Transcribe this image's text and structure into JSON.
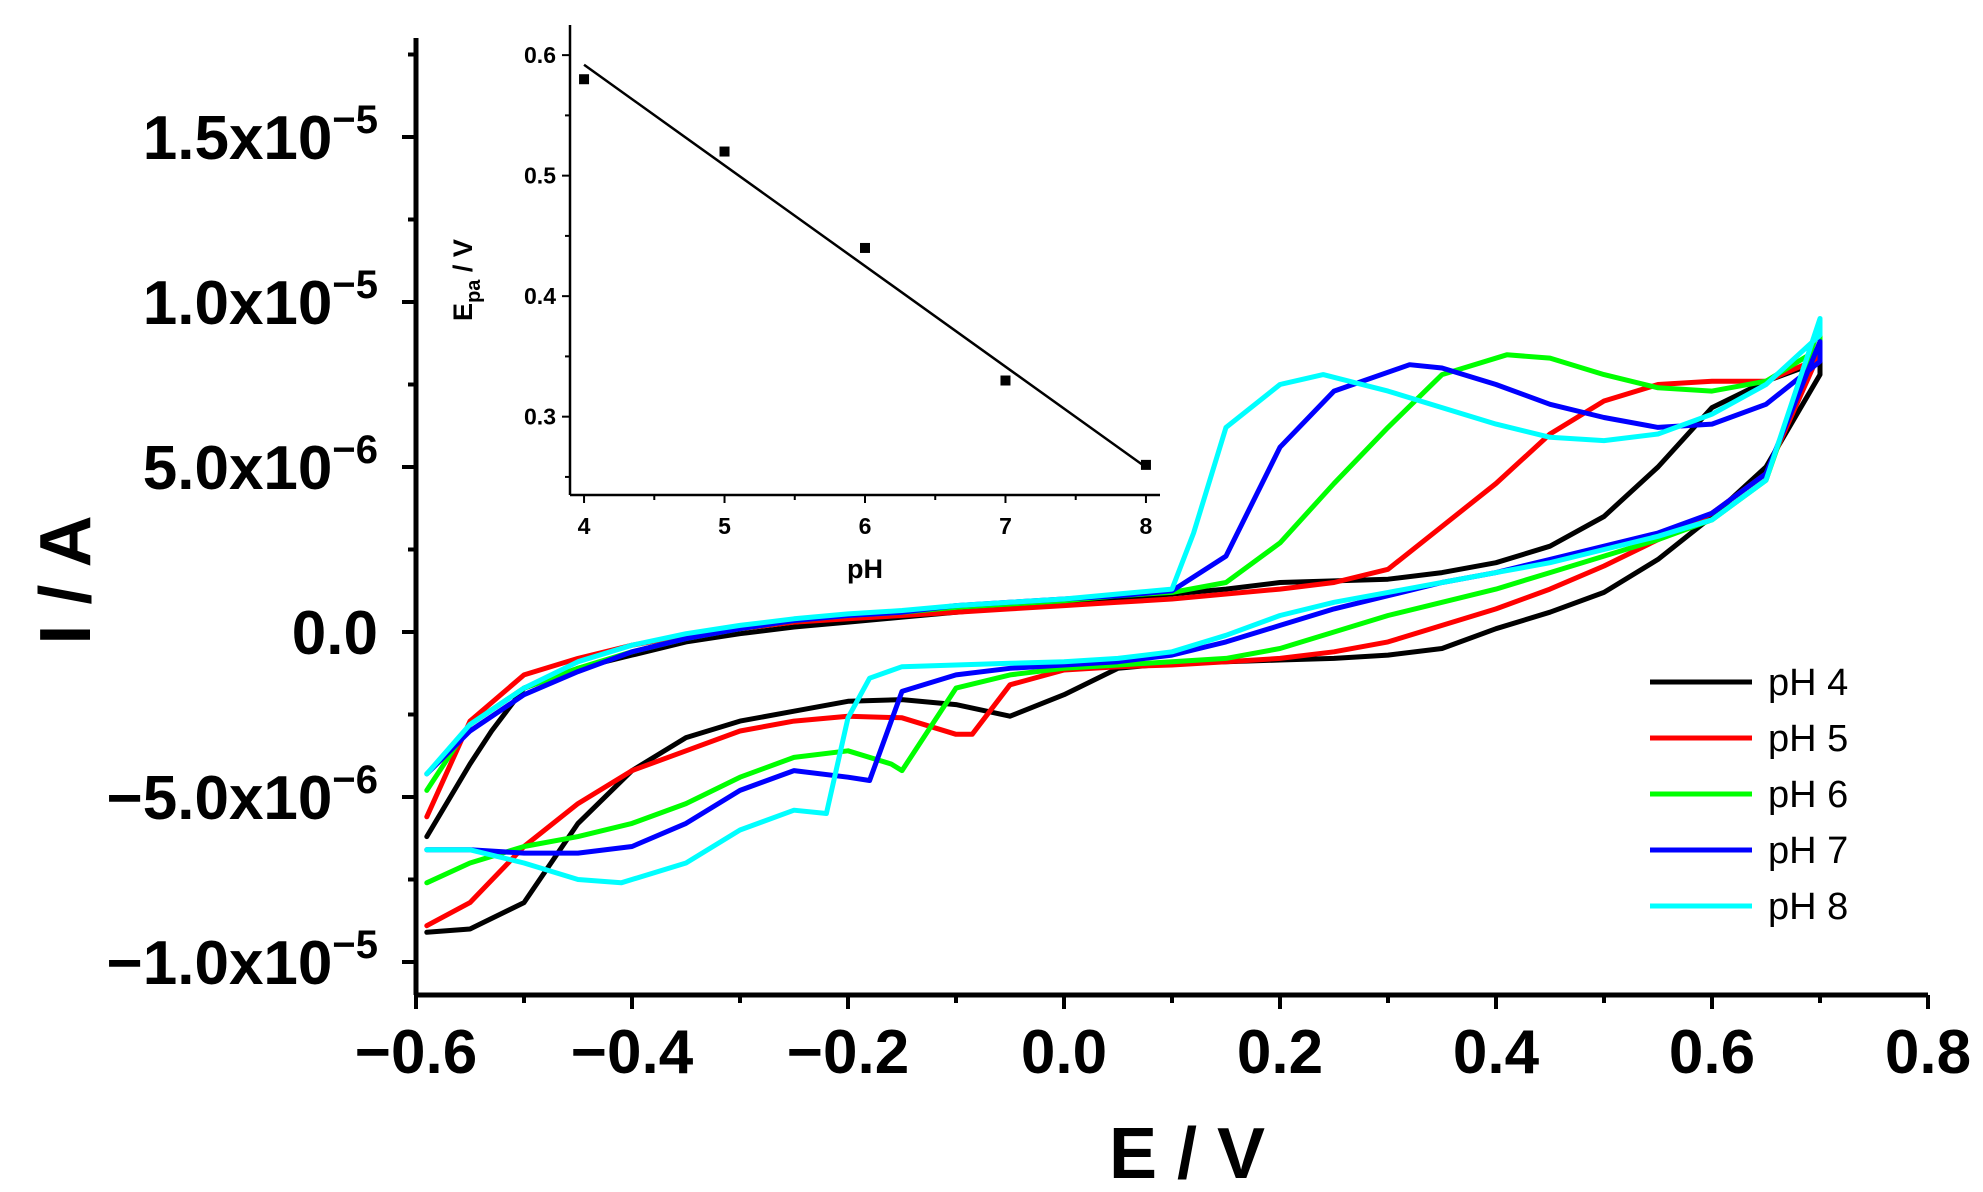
{
  "chart_data": [
    {
      "type": "line",
      "title": "",
      "xlabel": "E / V",
      "ylabel": "I / A",
      "xlim": [
        -0.6,
        0.8
      ],
      "ylim": [
        -1.1e-05,
        1.8e-05
      ],
      "x_ticks": [
        {
          "value": -0.6,
          "label": "−0.6"
        },
        {
          "value": -0.4,
          "label": "−0.4"
        },
        {
          "value": -0.2,
          "label": "−0.2"
        },
        {
          "value": 0.0,
          "label": "0.0"
        },
        {
          "value": 0.2,
          "label": "0.2"
        },
        {
          "value": 0.4,
          "label": "0.4"
        },
        {
          "value": 0.6,
          "label": "0.6"
        },
        {
          "value": 0.8,
          "label": "0.8"
        }
      ],
      "y_ticks": [
        {
          "value": -1e-05,
          "label": "−1.0x10",
          "exp": "−5"
        },
        {
          "value": -5e-06,
          "label": "−5.0x10",
          "exp": "−6"
        },
        {
          "value": 0,
          "label": "0.0",
          "exp": ""
        },
        {
          "value": 5e-06,
          "label": "5.0x10",
          "exp": "−6"
        },
        {
          "value": 1e-05,
          "label": "1.0x10",
          "exp": "−5"
        },
        {
          "value": 1.5e-05,
          "label": "1.5x10",
          "exp": "−5"
        }
      ],
      "legend_position": "bottom-right",
      "series": [
        {
          "name": "pH 4",
          "color": "#000000",
          "x": [
            -0.59,
            -0.55,
            -0.5,
            -0.45,
            -0.4,
            -0.35,
            -0.3,
            -0.25,
            -0.2,
            -0.15,
            -0.1,
            -0.05,
            0.0,
            0.05,
            0.1,
            0.15,
            0.2,
            0.25,
            0.3,
            0.35,
            0.4,
            0.45,
            0.5,
            0.55,
            0.6,
            0.65,
            0.7,
            0.7,
            0.65,
            0.6,
            0.55,
            0.5,
            0.45,
            0.4,
            0.35,
            0.3,
            0.25,
            0.2,
            0.15,
            0.1,
            0.05,
            0.01,
            -0.03,
            -0.05,
            -0.1,
            -0.15,
            -0.2,
            -0.25,
            -0.3,
            -0.35,
            -0.4,
            -0.45,
            -0.5,
            -0.53,
            -0.55,
            -0.59
          ],
          "y": [
            -9.1e-06,
            -9e-06,
            -8.2e-06,
            -5.8e-06,
            -4.2e-06,
            -3.2e-06,
            -2.7e-06,
            -2.4e-06,
            -2.1e-06,
            -2.05e-06,
            -2.2e-06,
            -2.55e-06,
            -1.9e-06,
            -1.1e-06,
            -9.5e-07,
            -9e-07,
            -8.5e-07,
            -8e-07,
            -7e-07,
            -5e-07,
            1e-07,
            6e-07,
            1.2e-06,
            2.2e-06,
            3.5e-06,
            5e-06,
            7.8e-06,
            8.2e-06,
            7.6e-06,
            6.8e-06,
            5e-06,
            3.5e-06,
            2.6e-06,
            2.1e-06,
            1.8e-06,
            1.6e-06,
            1.55e-06,
            1.5e-06,
            1.3e-06,
            1.15e-06,
            1e-06,
            9e-07,
            8e-07,
            7.5e-07,
            6e-07,
            4.5e-07,
            3e-07,
            1.5e-07,
            -5e-08,
            -3e-07,
            -7e-07,
            -1.1e-06,
            -1.7e-06,
            -3e-06,
            -4e-06,
            -6.2e-06
          ]
        },
        {
          "name": "pH 5",
          "color": "#ff0000",
          "x": [
            -0.59,
            -0.55,
            -0.5,
            -0.45,
            -0.4,
            -0.35,
            -0.3,
            -0.25,
            -0.2,
            -0.15,
            -0.1,
            -0.085,
            -0.05,
            0.0,
            0.05,
            0.1,
            0.15,
            0.2,
            0.25,
            0.3,
            0.35,
            0.4,
            0.45,
            0.5,
            0.55,
            0.6,
            0.65,
            0.7,
            0.7,
            0.65,
            0.6,
            0.55,
            0.5,
            0.45,
            0.4,
            0.35,
            0.3,
            0.25,
            0.2,
            0.15,
            0.1,
            0.05,
            0.0,
            -0.05,
            -0.1,
            -0.15,
            -0.2,
            -0.25,
            -0.3,
            -0.35,
            -0.4,
            -0.45,
            -0.5,
            -0.55,
            -0.59
          ],
          "y": [
            -8.9e-06,
            -8.2e-06,
            -6.5e-06,
            -5.2e-06,
            -4.2e-06,
            -3.6e-06,
            -3e-06,
            -2.7e-06,
            -2.55e-06,
            -2.6e-06,
            -3.1e-06,
            -3.1e-06,
            -1.6e-06,
            -1.15e-06,
            -1.05e-06,
            -1e-06,
            -9e-07,
            -8e-07,
            -6e-07,
            -3e-07,
            2e-07,
            7e-07,
            1.3e-06,
            2e-06,
            2.8e-06,
            3.6e-06,
            4.8e-06,
            8.5e-06,
            8.3e-06,
            7.6e-06,
            7.6e-06,
            7.5e-06,
            7e-06,
            6e-06,
            4.5e-06,
            3.2e-06,
            1.9e-06,
            1.5e-06,
            1.3e-06,
            1.15e-06,
            1e-06,
            9e-07,
            8e-07,
            7e-07,
            6e-07,
            5e-07,
            4e-07,
            3e-07,
            1e-07,
            -1e-07,
            -4e-07,
            -8e-07,
            -1.3e-06,
            -2.7e-06,
            -5.6e-06
          ]
        },
        {
          "name": "pH 6",
          "color": "#00ff00",
          "x": [
            -0.59,
            -0.55,
            -0.5,
            -0.45,
            -0.4,
            -0.35,
            -0.3,
            -0.25,
            -0.2,
            -0.16,
            -0.15,
            -0.1,
            -0.05,
            0.0,
            0.05,
            0.1,
            0.15,
            0.2,
            0.25,
            0.3,
            0.35,
            0.4,
            0.45,
            0.5,
            0.55,
            0.6,
            0.65,
            0.7,
            0.7,
            0.65,
            0.6,
            0.55,
            0.5,
            0.45,
            0.41,
            0.35,
            0.3,
            0.25,
            0.2,
            0.15,
            0.1,
            0.05,
            0.0,
            -0.05,
            -0.1,
            -0.15,
            -0.2,
            -0.25,
            -0.3,
            -0.35,
            -0.4,
            -0.45,
            -0.5,
            -0.55,
            -0.59
          ],
          "y": [
            -7.6e-06,
            -7e-06,
            -6.5e-06,
            -6.2e-06,
            -5.8e-06,
            -5.2e-06,
            -4.4e-06,
            -3.8e-06,
            -3.6e-06,
            -4e-06,
            -4.2e-06,
            -1.7e-06,
            -1.3e-06,
            -1.1e-06,
            -1e-06,
            -9e-07,
            -8e-07,
            -5e-07,
            0.0,
            5e-07,
            9e-07,
            1.3e-06,
            1.8e-06,
            2.3e-06,
            2.8e-06,
            3.4e-06,
            4.6e-06,
            9.3e-06,
            8.6e-06,
            7.6e-06,
            7.3e-06,
            7.4e-06,
            7.8e-06,
            8.3e-06,
            8.4e-06,
            7.8e-06,
            6.2e-06,
            4.5e-06,
            2.7e-06,
            1.5e-06,
            1.2e-06,
            1.1e-06,
            9.5e-07,
            8.5e-07,
            7.5e-07,
            6e-07,
            5e-07,
            3.5e-07,
            1e-07,
            -2e-07,
            -6e-07,
            -1.1e-06,
            -1.7e-06,
            -2.8e-06,
            -4.8e-06
          ]
        },
        {
          "name": "pH 7",
          "color": "#0000ff",
          "x": [
            -0.59,
            -0.55,
            -0.5,
            -0.45,
            -0.4,
            -0.35,
            -0.3,
            -0.25,
            -0.2,
            -0.18,
            -0.15,
            -0.1,
            -0.05,
            0.0,
            0.05,
            0.1,
            0.15,
            0.2,
            0.25,
            0.3,
            0.35,
            0.4,
            0.45,
            0.5,
            0.55,
            0.6,
            0.65,
            0.7,
            0.7,
            0.65,
            0.6,
            0.55,
            0.5,
            0.45,
            0.4,
            0.35,
            0.32,
            0.25,
            0.2,
            0.15,
            0.1,
            0.05,
            0.0,
            -0.05,
            -0.1,
            -0.15,
            -0.2,
            -0.25,
            -0.3,
            -0.35,
            -0.4,
            -0.45,
            -0.5,
            -0.55,
            -0.59
          ],
          "y": [
            -6.6e-06,
            -6.6e-06,
            -6.7e-06,
            -6.7e-06,
            -6.5e-06,
            -5.8e-06,
            -4.8e-06,
            -4.2e-06,
            -4.4e-06,
            -4.5e-06,
            -1.8e-06,
            -1.3e-06,
            -1.1e-06,
            -1e-06,
            -9e-07,
            -7e-07,
            -3e-07,
            2e-07,
            7e-07,
            1.1e-06,
            1.5e-06,
            1.8e-06,
            2.2e-06,
            2.6e-06,
            3e-06,
            3.6e-06,
            4.8e-06,
            8.8e-06,
            8.2e-06,
            6.9e-06,
            6.3e-06,
            6.2e-06,
            6.5e-06,
            6.9e-06,
            7.5e-06,
            8e-06,
            8.1e-06,
            7.3e-06,
            5.6e-06,
            2.3e-06,
            1.25e-06,
            1.1e-06,
            1e-06,
            9e-07,
            8e-07,
            6e-07,
            5e-07,
            3.5e-07,
            1e-07,
            -2e-07,
            -6e-07,
            -1.2e-06,
            -1.9e-06,
            -3e-06,
            -4.3e-06
          ]
        },
        {
          "name": "pH 8",
          "color": "#00ffff",
          "x": [
            -0.59,
            -0.55,
            -0.5,
            -0.45,
            -0.41,
            -0.35,
            -0.3,
            -0.25,
            -0.22,
            -0.2,
            -0.18,
            -0.15,
            -0.1,
            -0.05,
            0.0,
            0.05,
            0.1,
            0.15,
            0.2,
            0.25,
            0.3,
            0.35,
            0.4,
            0.45,
            0.5,
            0.55,
            0.6,
            0.65,
            0.7,
            0.7,
            0.65,
            0.6,
            0.55,
            0.5,
            0.45,
            0.4,
            0.35,
            0.3,
            0.24,
            0.2,
            0.15,
            0.12,
            0.1,
            0.05,
            0.0,
            -0.05,
            -0.1,
            -0.15,
            -0.2,
            -0.25,
            -0.3,
            -0.35,
            -0.4,
            -0.45,
            -0.5,
            -0.55,
            -0.59
          ],
          "y": [
            -6.6e-06,
            -6.6e-06,
            -7e-06,
            -7.5e-06,
            -7.6e-06,
            -7e-06,
            -6e-06,
            -5.4e-06,
            -5.5e-06,
            -2.6e-06,
            -1.4e-06,
            -1.05e-06,
            -1e-06,
            -9.5e-07,
            -9e-07,
            -8e-07,
            -6e-07,
            -1e-07,
            5e-07,
            9e-07,
            1.2e-06,
            1.5e-06,
            1.8e-06,
            2.1e-06,
            2.5e-06,
            2.9e-06,
            3.4e-06,
            4.6e-06,
            9.5e-06,
            9e-06,
            7.5e-06,
            6.6e-06,
            6e-06,
            5.8e-06,
            5.9e-06,
            6.3e-06,
            6.8e-06,
            7.3e-06,
            7.8e-06,
            7.5e-06,
            6.2e-06,
            3e-06,
            1.3e-06,
            1.15e-06,
            1e-06,
            9e-07,
            8e-07,
            6.5e-07,
            5.5e-07,
            4e-07,
            2e-07,
            -5e-08,
            -4e-07,
            -9e-07,
            -1.7e-06,
            -2.8e-06,
            -4.3e-06
          ]
        }
      ]
    },
    {
      "type": "scatter",
      "title": "",
      "xlabel": "pH",
      "ylabel": "E",
      "ylabel_sub": "pa",
      "ylabel_suffix": " / V",
      "xlim": [
        3.9,
        8.1
      ],
      "ylim": [
        0.235,
        0.625
      ],
      "x_ticks": [
        {
          "value": 4,
          "label": "4"
        },
        {
          "value": 5,
          "label": "5"
        },
        {
          "value": 6,
          "label": "6"
        },
        {
          "value": 7,
          "label": "7"
        },
        {
          "value": 8,
          "label": "8"
        }
      ],
      "y_ticks": [
        {
          "value": 0.3,
          "label": "0.3"
        },
        {
          "value": 0.4,
          "label": "0.4"
        },
        {
          "value": 0.5,
          "label": "0.5"
        },
        {
          "value": 0.6,
          "label": "0.6"
        }
      ],
      "x": [
        4,
        5,
        6,
        7,
        8
      ],
      "y": [
        0.58,
        0.52,
        0.44,
        0.33,
        0.26
      ],
      "fit_line": {
        "x": [
          4,
          8
        ],
        "y": [
          0.592,
          0.258
        ]
      }
    }
  ]
}
